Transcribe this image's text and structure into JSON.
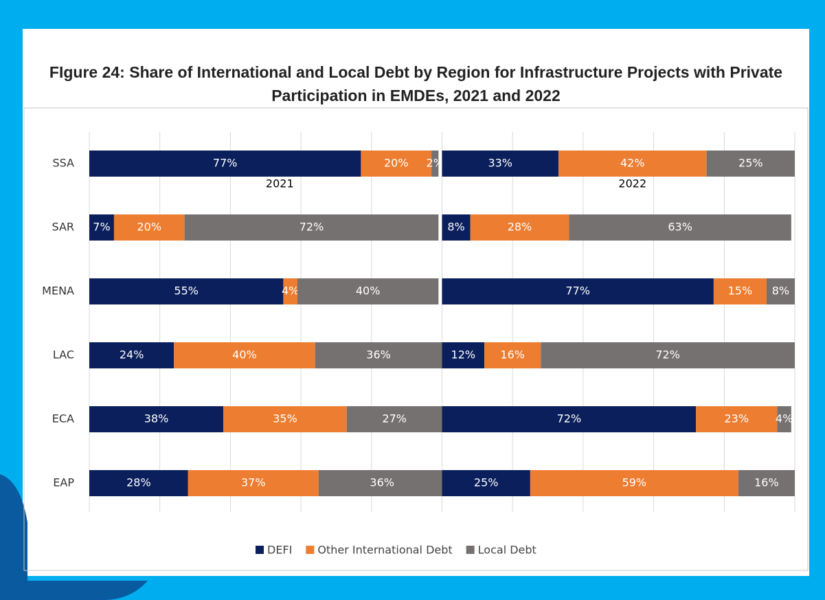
{
  "chart_data": {
    "type": "bar",
    "orientation": "horizontal",
    "stacked": true,
    "title": "FIgure 24: Share of International and Local Debt by Region for Infrastructure Projects with Private Participation in EMDEs, 2021 and 2022",
    "categories": [
      "SSA",
      "SAR",
      "MENA",
      "LAC",
      "ECA",
      "EAP"
    ],
    "groups": [
      "2021",
      "2022"
    ],
    "xlim": [
      0,
      100
    ],
    "xticks": [
      0,
      20,
      40,
      60,
      80,
      100
    ],
    "grid": true,
    "legend": "bottom",
    "series": [
      {
        "name": "DEFI",
        "color": "#0b1f5c",
        "values": [
          [
            77,
            7,
            55,
            24,
            38,
            28
          ],
          [
            33,
            8,
            77,
            12,
            72,
            25
          ]
        ],
        "value_labels": [
          [
            "77%",
            "7%",
            "55%",
            "24%",
            "38%",
            "28%"
          ],
          [
            "33%",
            "8%",
            "77%",
            "12%",
            "72%",
            "25%"
          ]
        ]
      },
      {
        "name": "Other International Debt",
        "color": "#ed7d31",
        "values": [
          [
            20,
            20,
            4,
            40,
            35,
            37
          ],
          [
            42,
            28,
            15,
            16,
            23,
            59
          ]
        ],
        "value_labels": [
          [
            "20%",
            "20%",
            "4%",
            "40%",
            "35%",
            "37%"
          ],
          [
            "42%",
            "28%",
            "15%",
            "16%",
            "23%",
            "59%"
          ]
        ]
      },
      {
        "name": "Local Debt",
        "color": "#767171",
        "values": [
          [
            2,
            72,
            40,
            36,
            27,
            36
          ],
          [
            25,
            63,
            8,
            72,
            4,
            16
          ]
        ],
        "value_labels": [
          [
            "2%",
            "72%",
            "40%",
            "36%",
            "27%",
            "36%"
          ],
          [
            "25%",
            "63%",
            "8%",
            "72%",
            "4%",
            "16%"
          ]
        ]
      }
    ]
  }
}
